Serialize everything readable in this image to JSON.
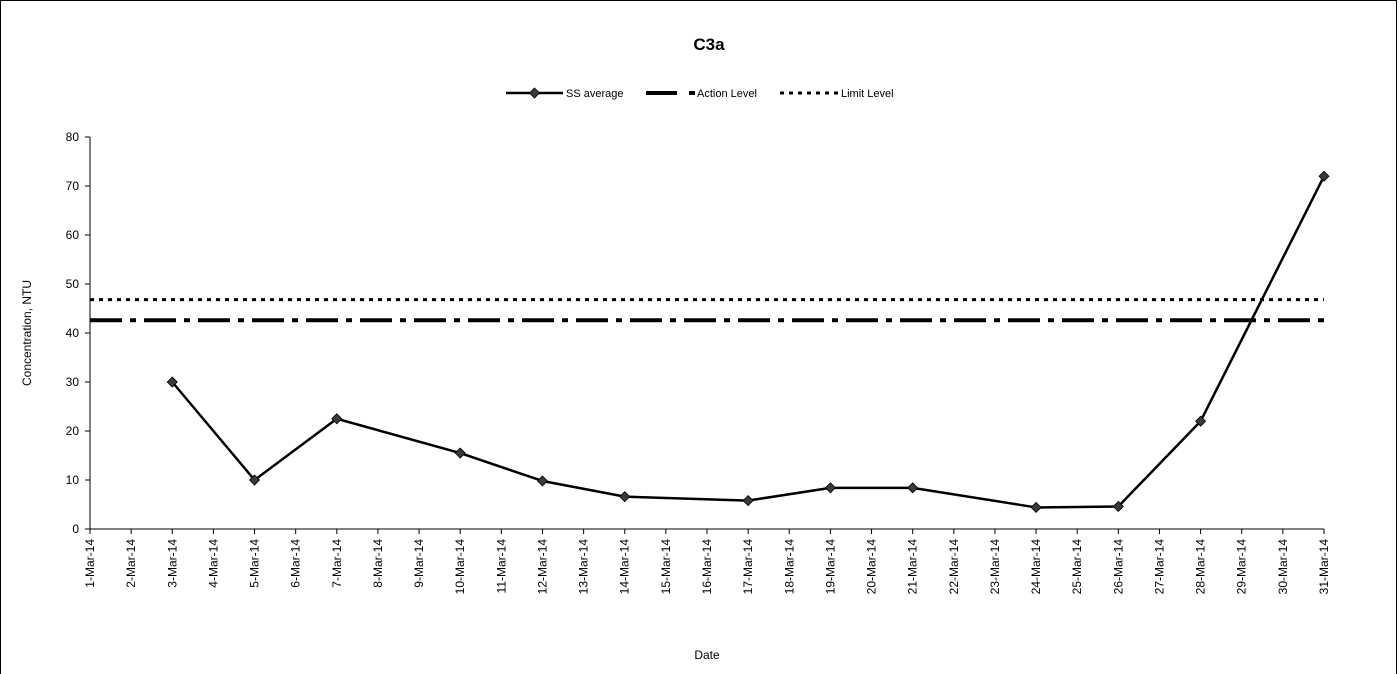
{
  "chart_data": {
    "type": "line",
    "title": "C3a",
    "xlabel": "Date",
    "ylabel": "Concentration, NTU",
    "ylim": [
      0,
      80
    ],
    "yticks": [
      "0",
      "10",
      "20",
      "30",
      "40",
      "50",
      "60",
      "70",
      "80"
    ],
    "categories": [
      "1-Mar-14",
      "2-Mar-14",
      "3-Mar-14",
      "4-Mar-14",
      "5-Mar-14",
      "6-Mar-14",
      "7-Mar-14",
      "8-Mar-14",
      "9-Mar-14",
      "10-Mar-14",
      "11-Mar-14",
      "12-Mar-14",
      "13-Mar-14",
      "14-Mar-14",
      "15-Mar-14",
      "16-Mar-14",
      "17-Mar-14",
      "18-Mar-14",
      "19-Mar-14",
      "20-Mar-14",
      "21-Mar-14",
      "22-Mar-14",
      "23-Mar-14",
      "24-Mar-14",
      "25-Mar-14",
      "26-Mar-14",
      "27-Mar-14",
      "28-Mar-14",
      "29-Mar-14",
      "30-Mar-14",
      "31-Mar-14"
    ],
    "series": [
      {
        "name": "SS average",
        "style": "solid-diamond",
        "points": [
          {
            "x": "3-Mar-14",
            "y": 30
          },
          {
            "x": "5-Mar-14",
            "y": 10
          },
          {
            "x": "7-Mar-14",
            "y": 22.5
          },
          {
            "x": "10-Mar-14",
            "y": 15.5
          },
          {
            "x": "12-Mar-14",
            "y": 9.8
          },
          {
            "x": "14-Mar-14",
            "y": 6.6
          },
          {
            "x": "17-Mar-14",
            "y": 5.8
          },
          {
            "x": "19-Mar-14",
            "y": 8.4
          },
          {
            "x": "21-Mar-14",
            "y": 8.4
          },
          {
            "x": "24-Mar-14",
            "y": 4.4
          },
          {
            "x": "26-Mar-14",
            "y": 4.6
          },
          {
            "x": "28-Mar-14",
            "y": 22
          },
          {
            "x": "31-Mar-14",
            "y": 72
          }
        ]
      },
      {
        "name": "Action Level",
        "style": "dash-dot",
        "value": 42.6
      },
      {
        "name": "Limit Level",
        "style": "dotted",
        "value": 46.8
      }
    ],
    "legend_position": "top",
    "grid": false
  }
}
